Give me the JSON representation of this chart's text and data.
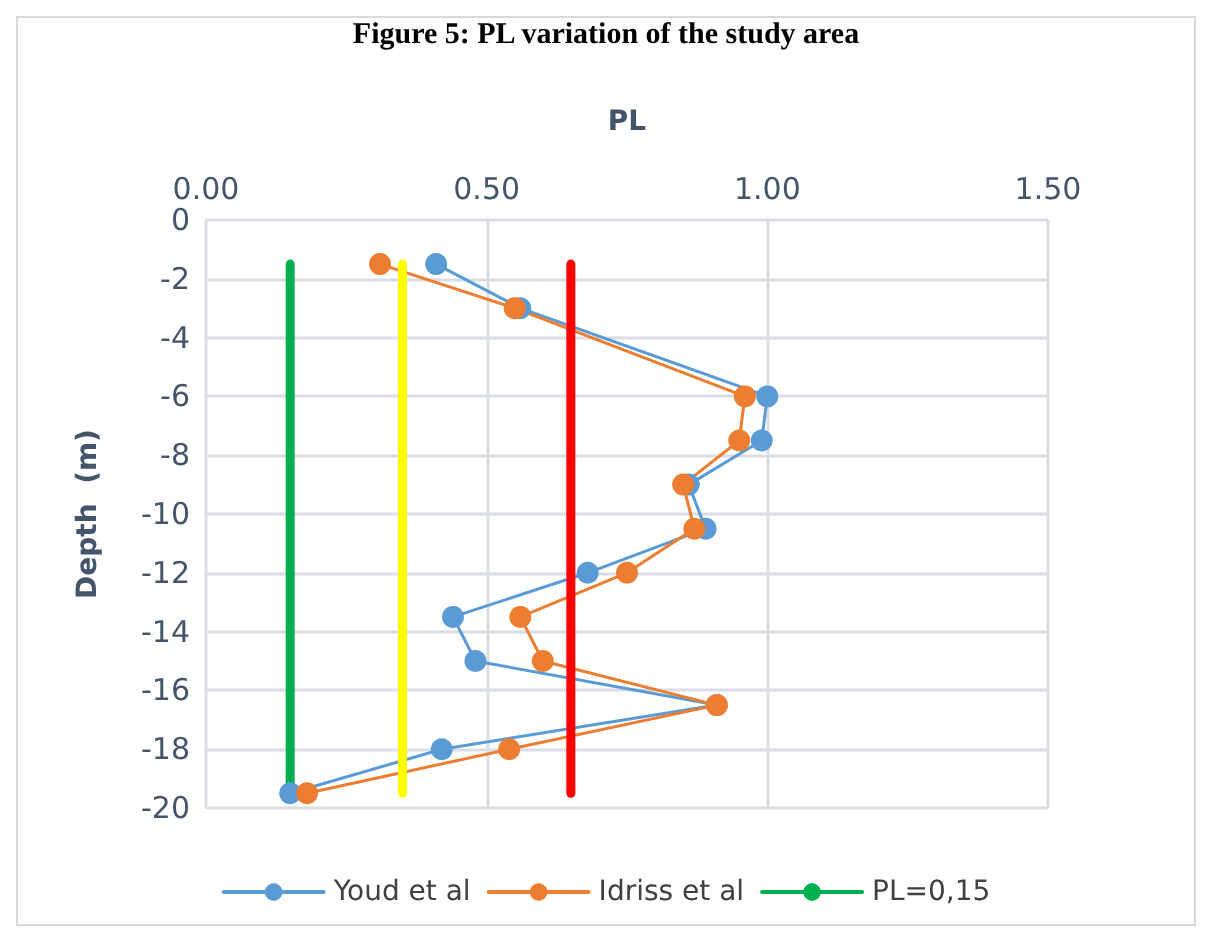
{
  "chart_data": {
    "type": "line",
    "title": "Figure 5: PL variation of the study area",
    "xlabel": "PL",
    "ylabel": "Depth  (m)",
    "xlim": [
      0,
      1.5
    ],
    "xticks": [
      {
        "value": 0,
        "label": "0.00"
      },
      {
        "value": 0.5,
        "label": "0.50"
      },
      {
        "value": 1,
        "label": "1.00"
      },
      {
        "value": 1.5,
        "label": "1.50"
      }
    ],
    "ylim": [
      -20,
      0
    ],
    "yticks": [
      -20,
      -18,
      -16,
      -14,
      -12,
      -10,
      -8,
      -6,
      -4,
      -2,
      0
    ],
    "grid": true,
    "legend": "bottom",
    "marker": "circle",
    "line_style": "solid",
    "series": [
      {
        "name": "Youd et al",
        "color": "#5b9bd5",
        "x": [
          0.41,
          0.56,
          1.0,
          0.99,
          0.86,
          0.89,
          0.68,
          0.44,
          0.48,
          0.91,
          0.42,
          0.15
        ],
        "values": [
          -1.5,
          -3,
          -6,
          -7.5,
          -9,
          -10.5,
          -12,
          -13.5,
          -15,
          -16.5,
          -18,
          -19.5
        ]
      },
      {
        "name": "Idriss et al",
        "color": "#ed7d31",
        "x": [
          0.31,
          0.55,
          0.96,
          0.95,
          0.85,
          0.87,
          0.75,
          0.56,
          0.6,
          0.91,
          0.54,
          0.18
        ],
        "values": [
          -1.5,
          -3,
          -6,
          -7.5,
          -9,
          -10.5,
          -12,
          -13.5,
          -15,
          -16.5,
          -18,
          -19.5
        ]
      },
      {
        "name": "PL=0,15",
        "color": "#00b050",
        "marker": "none",
        "x": [
          0.15,
          0.15
        ],
        "values": [
          -1.5,
          -19.5
        ]
      },
      {
        "color": "#ffff00",
        "marker": "none",
        "x": [
          0.35,
          0.35
        ],
        "values": [
          -1.5,
          -19.5
        ]
      },
      {
        "color": "#ff0000",
        "marker": "none",
        "x": [
          0.65,
          0.65
        ],
        "values": [
          -1.5,
          -19.5
        ]
      }
    ]
  }
}
